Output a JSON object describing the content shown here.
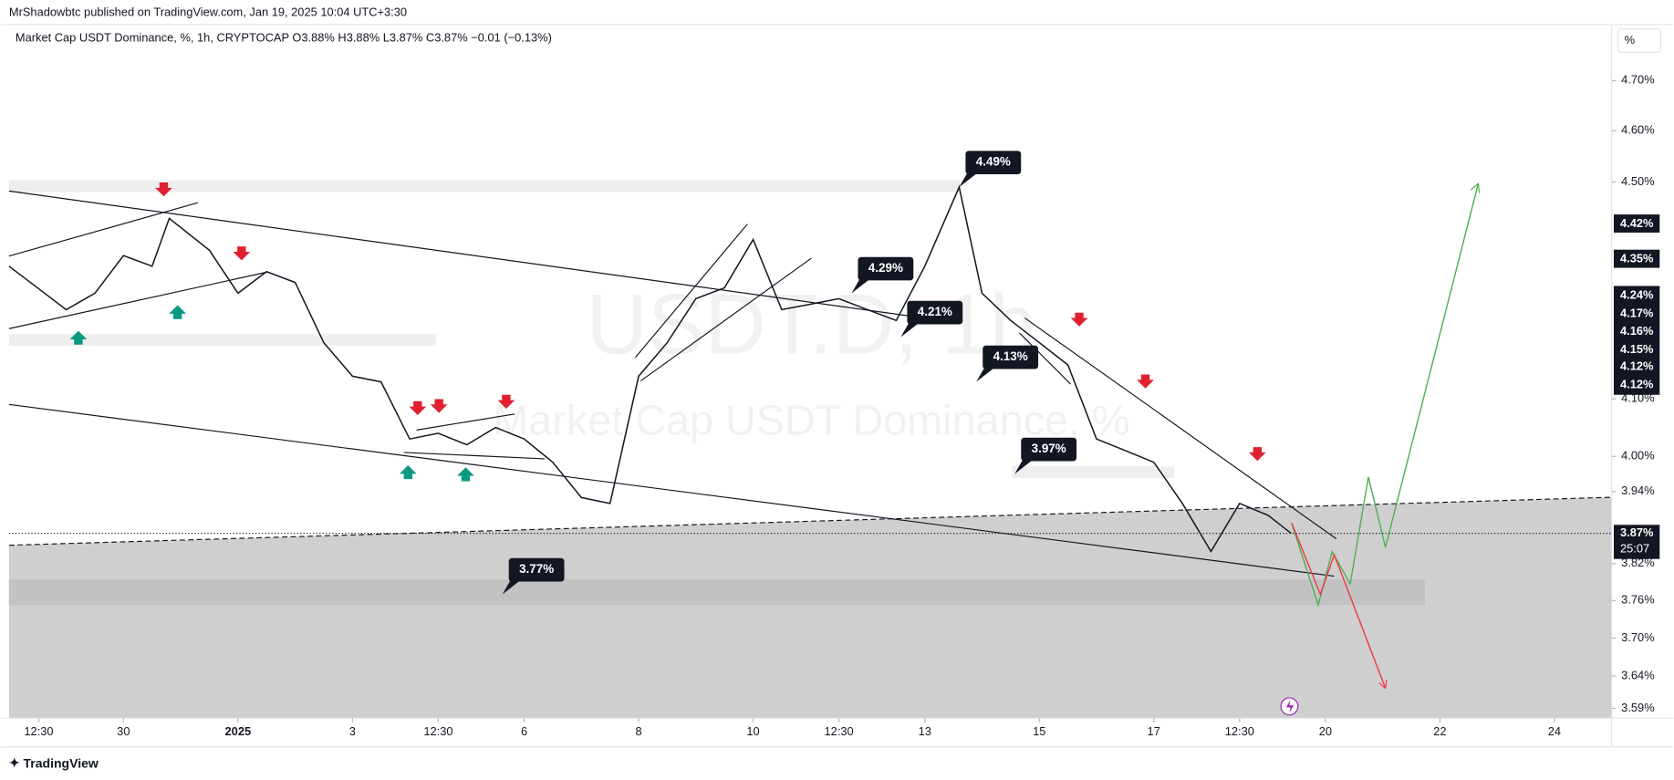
{
  "header": {
    "published": "MrShadowbtc published on TradingView.com, Jan 19, 2025 10:04 UTC+3:30",
    "legend": "Market Cap USDT Dominance, %, 1h, CRYPTOCAP  O3.88%  H3.88%  L3.87%  C3.87%  −0.01 (−0.13%)",
    "scale_button": "%"
  },
  "footer": {
    "brand": "TradingView"
  },
  "chart_data": {
    "type": "line",
    "color": "#131722",
    "log": true,
    "watermark": [
      "USDT.D, 1h",
      "Market Cap USDT Dominance, %"
    ],
    "x": [
      0,
      0.5,
      1,
      1.5,
      2,
      2.5,
      2.8,
      3.5,
      4,
      4.5,
      5,
      5.5,
      6,
      6.5,
      7,
      7.5,
      8,
      8.5,
      9,
      9.5,
      10,
      10.5,
      11,
      11.5,
      12,
      12.5,
      13,
      13.5,
      14,
      14.5,
      15,
      15.5,
      16,
      16.6,
      17,
      17.5,
      18,
      18.5,
      19,
      19.5,
      20,
      20.5,
      21,
      21.5,
      22,
      22.4
    ],
    "values": [
      4.34,
      4.3,
      4.26,
      4.29,
      4.36,
      4.34,
      4.43,
      4.37,
      4.29,
      4.33,
      4.31,
      4.2,
      4.14,
      4.13,
      4.03,
      4.04,
      4.02,
      4.05,
      4.03,
      3.99,
      3.93,
      3.92,
      4.14,
      4.2,
      4.28,
      4.3,
      4.39,
      4.26,
      4.27,
      4.28,
      4.26,
      4.24,
      4.34,
      4.49,
      4.29,
      4.24,
      4.2,
      4.16,
      4.03,
      4.01,
      3.99,
      3.92,
      3.84,
      3.92,
      3.9,
      3.87
    ],
    "xlim": [
      0,
      28
    ],
    "ylim": [
      3.575,
      4.81
    ],
    "xticks": [
      {
        "value": 0.52,
        "label": "12:30"
      },
      {
        "value": 2,
        "label": "30"
      },
      {
        "value": 4,
        "label": "2025"
      },
      {
        "value": 6,
        "label": "3"
      },
      {
        "value": 7.5,
        "label": "12:30"
      },
      {
        "value": 9,
        "label": "6"
      },
      {
        "value": 11,
        "label": "8"
      },
      {
        "value": 13,
        "label": "10"
      },
      {
        "value": 14.5,
        "label": "12:30"
      },
      {
        "value": 16,
        "label": "13"
      },
      {
        "value": 18,
        "label": "15"
      },
      {
        "value": 20,
        "label": "17"
      },
      {
        "value": 21.5,
        "label": "12:30"
      },
      {
        "value": 23,
        "label": "20"
      },
      {
        "value": 25,
        "label": "22"
      },
      {
        "value": 27,
        "label": "24"
      }
    ],
    "yticks": [
      {
        "value": 4.7,
        "label": "4.70%"
      },
      {
        "value": 4.6,
        "label": "4.60%"
      },
      {
        "value": 4.5,
        "label": "4.50%"
      },
      {
        "value": 4.1,
        "label": "4.10%"
      },
      {
        "value": 4.0,
        "label": "4.00%"
      },
      {
        "value": 3.94,
        "label": "3.94%"
      },
      {
        "value": 3.82,
        "label": "3.82%"
      },
      {
        "value": 3.76,
        "label": "3.76%"
      },
      {
        "value": 3.7,
        "label": "3.70%"
      },
      {
        "value": 3.64,
        "label": "3.64%"
      },
      {
        "value": 3.59,
        "label": "3.59%"
      }
    ],
    "price_labels": [
      "4.42%",
      "4.35%",
      "4.24%",
      "4.17%",
      "4.16%",
      "4.15%",
      "4.12%",
      "4.12%"
    ],
    "last_price": {
      "value": 3.87,
      "label": "3.87%",
      "countdown": "25:07"
    },
    "annotations": [
      {
        "text": "4.49%",
        "x": 16.6,
        "y": 4.49
      },
      {
        "text": "4.29%",
        "x": 14.72,
        "y": 4.29
      },
      {
        "text": "4.21%",
        "x": 15.58,
        "y": 4.21
      },
      {
        "text": "4.13%",
        "x": 16.9,
        "y": 4.13
      },
      {
        "text": "3.97%",
        "x": 17.57,
        "y": 3.97
      },
      {
        "text": "3.77%",
        "x": 8.62,
        "y": 3.77
      }
    ]
  }
}
